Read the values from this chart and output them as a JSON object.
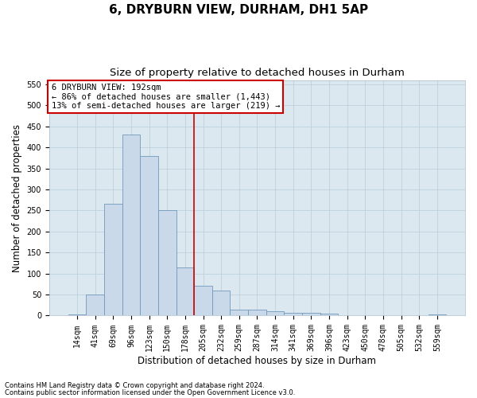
{
  "title": "6, DRYBURN VIEW, DURHAM, DH1 5AP",
  "subtitle": "Size of property relative to detached houses in Durham",
  "xlabel": "Distribution of detached houses by size in Durham",
  "ylabel": "Number of detached properties",
  "footnote1": "Contains HM Land Registry data © Crown copyright and database right 2024.",
  "footnote2": "Contains public sector information licensed under the Open Government Licence v3.0.",
  "annotation_line1": "6 DRYBURN VIEW: 192sqm",
  "annotation_line2": "← 86% of detached houses are smaller (1,443)",
  "annotation_line3": "13% of semi-detached houses are larger (219) →",
  "bar_labels": [
    "14sqm",
    "41sqm",
    "69sqm",
    "96sqm",
    "123sqm",
    "150sqm",
    "178sqm",
    "205sqm",
    "232sqm",
    "259sqm",
    "287sqm",
    "314sqm",
    "341sqm",
    "369sqm",
    "396sqm",
    "423sqm",
    "450sqm",
    "478sqm",
    "505sqm",
    "532sqm",
    "559sqm"
  ],
  "bar_values": [
    3,
    50,
    265,
    430,
    380,
    250,
    115,
    70,
    60,
    15,
    15,
    10,
    7,
    7,
    4,
    0,
    1,
    0,
    0,
    0,
    2
  ],
  "bar_color": "#c9d9ea",
  "bar_edge_color": "#7099ba",
  "vline_color": "#cc0000",
  "vline_x": 6.5,
  "ylim": [
    0,
    560
  ],
  "yticks": [
    0,
    50,
    100,
    150,
    200,
    250,
    300,
    350,
    400,
    450,
    500,
    550
  ],
  "annotation_box_facecolor": "#ffffff",
  "annotation_box_edgecolor": "#cc0000",
  "plot_bg_color": "#dce8f0",
  "fig_bg_color": "#ffffff",
  "grid_color": "#b8ccd8",
  "title_fontsize": 11,
  "subtitle_fontsize": 9.5,
  "axlabel_fontsize": 8.5,
  "tick_fontsize": 7,
  "annot_fontsize": 7.5
}
